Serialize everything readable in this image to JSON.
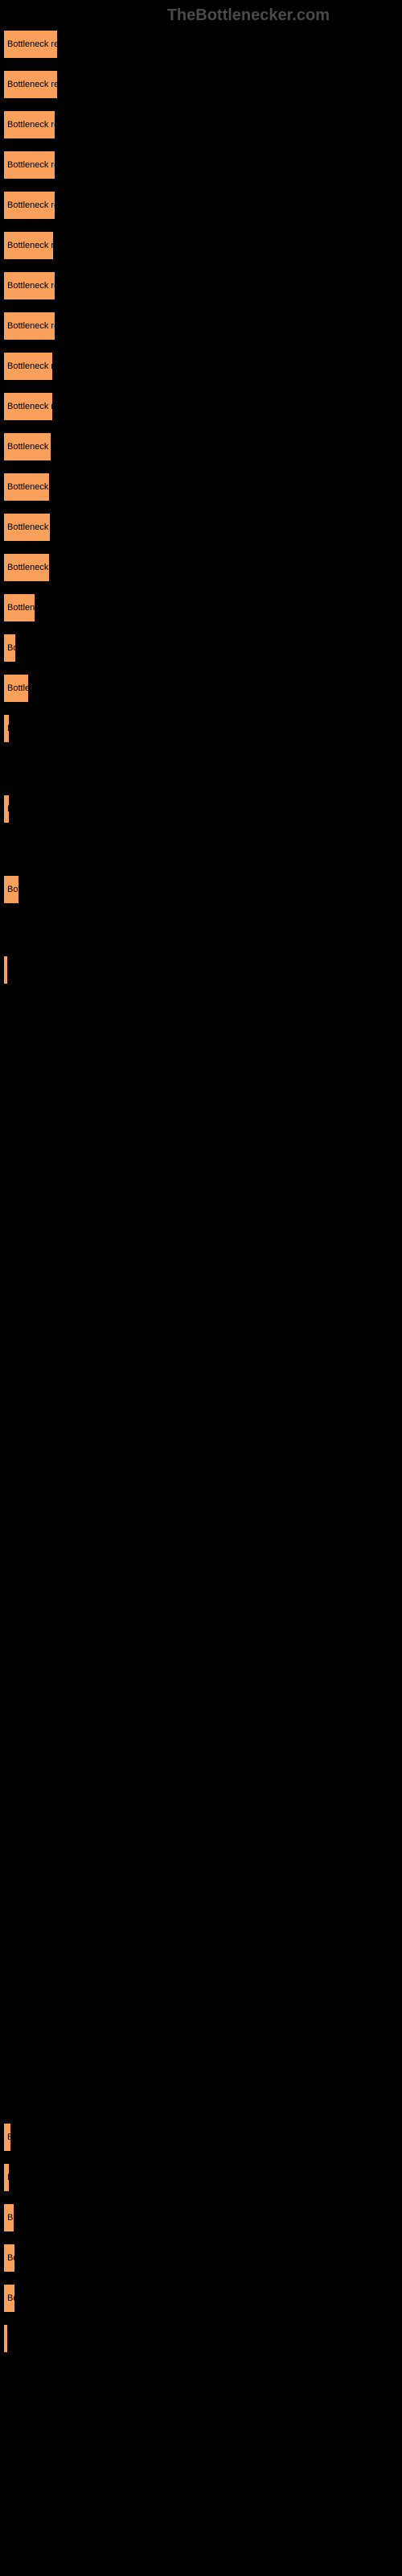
{
  "watermark": "TheBottlenecker.com",
  "chart": {
    "type": "bar",
    "bar_color": "#f9a05c",
    "background_color": "#000000",
    "text_color": "#000000",
    "bars": [
      {
        "label": "Bottleneck result",
        "width": 68
      },
      {
        "label": "Bottleneck result",
        "width": 68
      },
      {
        "label": "Bottleneck resu",
        "width": 65
      },
      {
        "label": "Bottleneck resu",
        "width": 65
      },
      {
        "label": "Bottleneck resu",
        "width": 65
      },
      {
        "label": "Bottleneck rest",
        "width": 63
      },
      {
        "label": "Bottleneck resu",
        "width": 65
      },
      {
        "label": "Bottleneck resu",
        "width": 65
      },
      {
        "label": "Bottleneck res",
        "width": 62
      },
      {
        "label": "Bottleneck res",
        "width": 62
      },
      {
        "label": "Bottleneck res",
        "width": 60
      },
      {
        "label": "Bottleneck re",
        "width": 58
      },
      {
        "label": "Bottleneck re",
        "width": 59
      },
      {
        "label": "Bottleneck re",
        "width": 58
      },
      {
        "label": "Bottlene",
        "width": 40
      },
      {
        "label": "Bo",
        "width": 16
      },
      {
        "label": "Bottler",
        "width": 32
      },
      {
        "label": "B",
        "width": 8
      },
      {
        "label": "",
        "width": 0
      },
      {
        "label": "B",
        "width": 8
      },
      {
        "label": "",
        "width": 0
      },
      {
        "label": "Bot",
        "width": 20
      },
      {
        "label": "",
        "width": 0
      },
      {
        "label": "",
        "width": 6
      },
      {
        "label": "",
        "width": 0
      },
      {
        "label": "",
        "width": 0
      },
      {
        "label": "",
        "width": 0
      },
      {
        "label": "",
        "width": 0
      },
      {
        "label": "",
        "width": 0
      },
      {
        "label": "",
        "width": 0
      },
      {
        "label": "",
        "width": 0
      },
      {
        "label": "",
        "width": 0
      },
      {
        "label": "",
        "width": 0
      },
      {
        "label": "",
        "width": 0
      },
      {
        "label": "",
        "width": 0
      },
      {
        "label": "",
        "width": 0
      },
      {
        "label": "",
        "width": 0
      },
      {
        "label": "",
        "width": 0
      },
      {
        "label": "",
        "width": 0
      },
      {
        "label": "",
        "width": 0
      },
      {
        "label": "",
        "width": 0
      },
      {
        "label": "",
        "width": 0
      },
      {
        "label": "",
        "width": 0
      },
      {
        "label": "",
        "width": 0
      },
      {
        "label": "",
        "width": 0
      },
      {
        "label": "",
        "width": 0
      },
      {
        "label": "",
        "width": 0
      },
      {
        "label": "",
        "width": 0
      },
      {
        "label": "",
        "width": 0
      },
      {
        "label": "",
        "width": 0
      },
      {
        "label": "",
        "width": 0
      },
      {
        "label": "",
        "width": 0
      },
      {
        "label": "B",
        "width": 10
      },
      {
        "label": "B",
        "width": 8
      },
      {
        "label": "Bo",
        "width": 14
      },
      {
        "label": "Bo",
        "width": 15
      },
      {
        "label": "Bo",
        "width": 15
      },
      {
        "label": "",
        "width": 5
      }
    ]
  }
}
